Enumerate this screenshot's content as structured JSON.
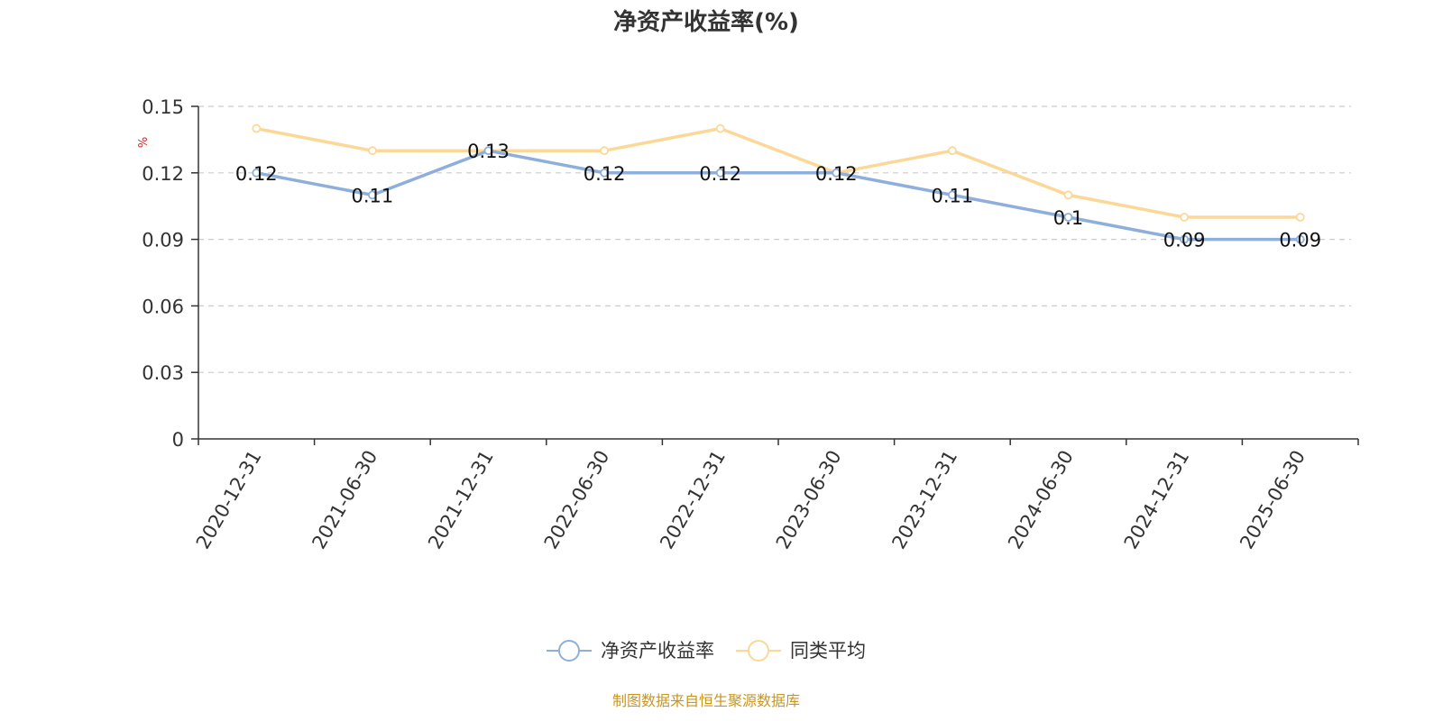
{
  "chart_data": {
    "type": "line",
    "title": "净资产收益率(%)",
    "ylabel": "%",
    "categories": [
      "2020-12-31",
      "2021-06-30",
      "2021-12-31",
      "2022-06-30",
      "2022-12-31",
      "2023-06-30",
      "2023-12-31",
      "2024-06-30",
      "2024-12-31",
      "2025-06-30"
    ],
    "yticks": [
      "0",
      "0.03",
      "0.06",
      "0.09",
      "0.12",
      "0.15"
    ],
    "ylim": [
      0,
      0.15
    ],
    "grid": true,
    "legend_position": "bottom",
    "series": [
      {
        "name": "净资产收益率",
        "color": "#8eaedb",
        "show_labels": true,
        "values": [
          0.12,
          0.11,
          0.13,
          0.12,
          0.12,
          0.12,
          0.11,
          0.1,
          0.09,
          0.09
        ],
        "labels": [
          "0.12",
          "0.11",
          "0.13",
          "0.12",
          "0.12",
          "0.12",
          "0.11",
          "0.1",
          "0.09",
          "0.09"
        ]
      },
      {
        "name": "同类平均",
        "color": "#fcd898",
        "show_labels": false,
        "values": [
          0.14,
          0.13,
          0.13,
          0.13,
          0.14,
          0.12,
          0.13,
          0.11,
          0.1,
          0.1
        ]
      }
    ]
  },
  "footer": {
    "source": "制图数据来自恒生聚源数据库"
  }
}
